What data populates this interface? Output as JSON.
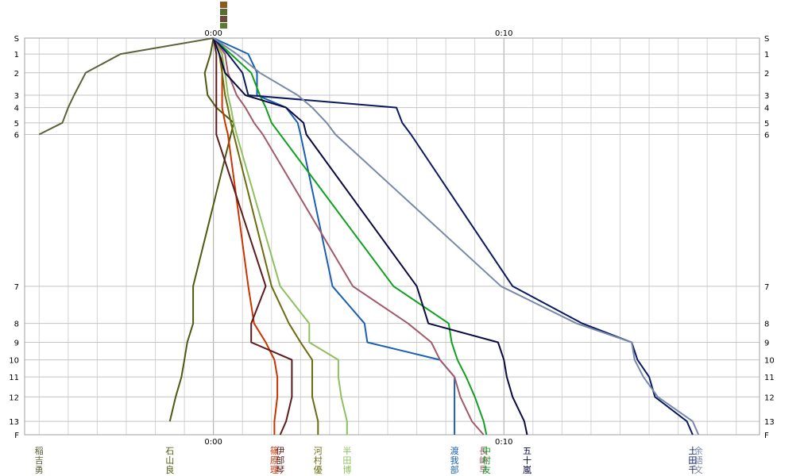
{
  "chart_data": {
    "type": "line",
    "title": "",
    "xlabel": "",
    "ylabel": "",
    "x_unit": "minutes",
    "xlim": [
      -6.5,
      18.8
    ],
    "x_ticks": [
      {
        "value": 0,
        "label": "0:00"
      },
      {
        "value": 10,
        "label": "0:10"
      }
    ],
    "stations": [
      "S",
      "1",
      "2",
      "3",
      "4",
      "5",
      "6",
      "7",
      "8",
      "9",
      "10",
      "11",
      "12",
      "13",
      "F"
    ],
    "station_positions": [
      0,
      0.92,
      2.0,
      3.29,
      4.0,
      4.88,
      5.55,
      14.29,
      16.43,
      17.52,
      18.53,
      19.51,
      20.66,
      22.07,
      22.84
    ],
    "grid": true,
    "legend": "names at bottom, vertical text",
    "series": [
      {
        "name": "稲吉勇",
        "color": "#5c6238",
        "values": [
          0,
          -3.2,
          -4.4,
          -4.8,
          -5.0,
          -5.2,
          -6.0
        ]
      },
      {
        "name": "石山良",
        "color": "#4a5a10",
        "values": [
          0,
          -0.1,
          -0.3,
          -0.2,
          0.1,
          0.7,
          0.6,
          -0.7,
          -0.7,
          -0.9,
          -1.0,
          -1.1,
          -1.3,
          -1.5
        ]
      },
      {
        "name": "篠原理",
        "color": "#cc3300",
        "values": [
          0,
          0.3,
          0.3,
          0.3,
          0.3,
          0.4,
          0.5,
          1.2,
          1.4,
          1.8,
          2.1,
          2.2,
          2.2,
          2.1,
          2.1
        ]
      },
      {
        "name": "伊部琴",
        "color": "#5c1a1a",
        "values": [
          0,
          0.1,
          0.1,
          0.1,
          0.1,
          0.1,
          0.1,
          1.8,
          1.3,
          1.3,
          2.7,
          2.7,
          2.7,
          2.5,
          2.3
        ]
      },
      {
        "name": "河村優",
        "color": "#6b6b10",
        "values": [
          0,
          0.2,
          0.3,
          0.4,
          0.5,
          0.6,
          0.7,
          2.0,
          2.6,
          3.0,
          3.4,
          3.4,
          3.4,
          3.6,
          3.6
        ]
      },
      {
        "name": "半田博",
        "color": "#8ec060",
        "values": [
          0,
          0.3,
          0.4,
          0.5,
          0.6,
          0.7,
          0.8,
          2.3,
          3.3,
          3.3,
          4.3,
          4.3,
          4.4,
          4.6,
          4.6
        ]
      },
      {
        "name": "渡我部",
        "color": "#1a5fb4",
        "values": [
          0,
          1.2,
          1.5,
          1.5,
          2.5,
          2.9,
          3.0,
          4.1,
          5.2,
          5.3,
          7.8,
          8.3,
          8.3,
          8.3,
          8.3
        ]
      },
      {
        "name": "長崎早",
        "color": "#a05a6a",
        "values": [
          0,
          0.4,
          0.5,
          0.8,
          1.1,
          1.4,
          1.7,
          4.8,
          6.7,
          7.5,
          7.8,
          8.3,
          8.5,
          8.9,
          9.3
        ]
      },
      {
        "name": "中村友",
        "color": "#10a020",
        "values": [
          0,
          0.6,
          1.3,
          1.6,
          1.8,
          2.0,
          2.3,
          6.2,
          8.1,
          8.2,
          8.4,
          8.7,
          9.0,
          9.3,
          9.4
        ]
      },
      {
        "name": "五十嵐",
        "color": "#0a0a40",
        "values": [
          0,
          0.2,
          0.4,
          1.1,
          2.5,
          3.1,
          3.2,
          7.0,
          7.4,
          9.8,
          10.0,
          10.1,
          10.3,
          10.7,
          10.8
        ]
      },
      {
        "name": "土田千",
        "color": "#0a1a60",
        "values": [
          0,
          0.5,
          1.0,
          1.2,
          6.3,
          6.5,
          6.8,
          10.3,
          12.7,
          14.4,
          14.6,
          15.0,
          15.2,
          16.3,
          16.5
        ]
      },
      {
        "name": "余語文",
        "color": "#7888a8",
        "values": [
          0,
          0.8,
          1.6,
          2.9,
          3.4,
          3.9,
          4.2,
          9.9,
          12.5,
          14.4,
          14.5,
          14.8,
          15.3,
          16.5,
          16.7
        ]
      }
    ]
  }
}
